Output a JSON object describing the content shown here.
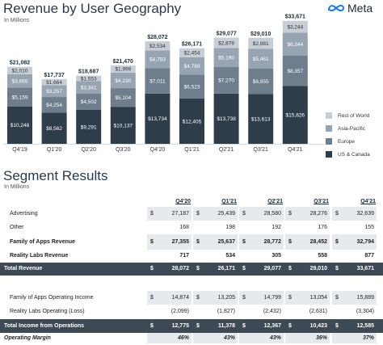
{
  "header": {
    "title": "Revenue by User Geography",
    "subtitle": "In Millions",
    "logo_text": "Meta"
  },
  "chart_data": {
    "type": "bar",
    "stacked": true,
    "categories": [
      "Q4'19",
      "Q1'20",
      "Q2'20",
      "Q3'20",
      "Q4'20",
      "Q1'21",
      "Q2'21",
      "Q3'21",
      "Q4'21"
    ],
    "series": [
      {
        "name": "US & Canada",
        "color": "#2e3d4a",
        "values": [
          10248,
          8562,
          9291,
          10137,
          13734,
          12405,
          13738,
          13613,
          15826
        ]
      },
      {
        "name": "Europe",
        "color": "#6f7e8c",
        "values": [
          5159,
          4254,
          4502,
          5104,
          7011,
          6523,
          7270,
          6955,
          8357
        ]
      },
      {
        "name": "Asia-Pacific",
        "color": "#97a5b2",
        "values": [
          3665,
          3257,
          3341,
          4230,
          4793,
          4789,
          5190,
          5461,
          6244
        ]
      },
      {
        "name": "Rest of World",
        "color": "#c7ced6",
        "values": [
          2010,
          1664,
          1553,
          1999,
          2534,
          2454,
          2879,
          2981,
          3244
        ]
      }
    ],
    "value_labels": {
      "US & Canada": [
        "$10,248",
        "$8,562",
        "$9,291",
        "$10,137",
        "$13,734",
        "$12,405",
        "$13,738",
        "$13,613",
        "$15,826"
      ],
      "Europe": [
        "$5,159",
        "$4,254",
        "$4,502",
        "$5,104",
        "$7,011",
        "$6,523",
        "$7,270",
        "$6,955",
        "$8,357"
      ],
      "Asia-Pacific": [
        "$3,665",
        "$3,257",
        "$3,341",
        "$4,230",
        "$4,793",
        "$4,789",
        "$5,190",
        "$5,461",
        "$6,244"
      ],
      "Rest of World": [
        "$2,010",
        "$1,664",
        "$1,553",
        "$1,999",
        "$2,534",
        "$2,454",
        "$2,879",
        "$2,981",
        "$3,244"
      ]
    },
    "totals": [
      21082,
      17737,
      18687,
      21470,
      28072,
      26171,
      29077,
      29010,
      33671
    ],
    "total_labels": [
      "$21,082",
      "$17,737",
      "$18,687",
      "$21,470",
      "$28,072",
      "$26,171",
      "$29,077",
      "$29,010",
      "$33,671"
    ],
    "ylim": [
      0,
      34500
    ],
    "xlabel": "",
    "ylabel": "",
    "grid": false,
    "legend_position": "right",
    "legend": [
      "Rest of World",
      "Asia-Pacific",
      "Europe",
      "US & Canada"
    ]
  },
  "segments": {
    "title": "Segment Results",
    "subtitle": "In Millions",
    "columns": [
      "Q4'20",
      "Q1'21",
      "Q2'21",
      "Q3'21",
      "Q4'21"
    ],
    "rows": [
      {
        "label": "Advertising",
        "dollar": true,
        "values": [
          "27,187",
          "25,439",
          "28,580",
          "28,276",
          "32,639"
        ],
        "style": "shade"
      },
      {
        "label": "Other",
        "dollar": false,
        "values": [
          "168",
          "198",
          "192",
          "176",
          "155"
        ],
        "style": "plain"
      },
      {
        "label": "Family of Apps Revenue",
        "dollar": true,
        "values": [
          "27,355",
          "25,637",
          "28,772",
          "28,452",
          "32,794"
        ],
        "style": "shade-bold"
      },
      {
        "label": "Reality Labs Revenue",
        "dollar": false,
        "values": [
          "717",
          "534",
          "305",
          "558",
          "877"
        ],
        "style": "bold"
      },
      {
        "label": "Total Revenue",
        "dollar": true,
        "values": [
          "28,072",
          "26,171",
          "29,077",
          "29,010",
          "33,671"
        ],
        "style": "dark"
      },
      {
        "label": "Family of Apps Operating Income",
        "dollar": true,
        "values": [
          "14,874",
          "13,205",
          "14,799",
          "13,054",
          "15,889"
        ],
        "style": "shade"
      },
      {
        "label": "Reality Labs Operating (Loss)",
        "dollar": false,
        "values": [
          "(2,099)",
          "(1,827)",
          "(2,432)",
          "(2,631)",
          "(3,304)"
        ],
        "style": "plain"
      },
      {
        "label": "Total Income from Operations",
        "dollar": true,
        "values": [
          "12,775",
          "11,378",
          "12,367",
          "10,423",
          "12,585"
        ],
        "style": "dark"
      },
      {
        "label": "Operating Margin",
        "dollar": false,
        "values": [
          "46%",
          "43%",
          "43%",
          "36%",
          "37%"
        ],
        "style": "shade-italic"
      }
    ],
    "dollar_sign": "$"
  }
}
